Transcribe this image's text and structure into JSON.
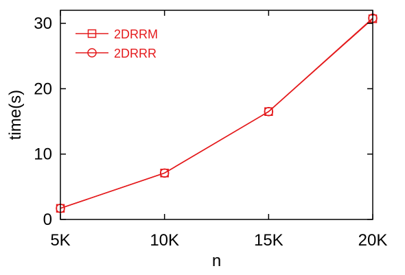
{
  "chart_data": {
    "type": "line",
    "title": "",
    "xlabel": "n",
    "ylabel": "time(s)",
    "x": [
      5000,
      10000,
      15000,
      20000
    ],
    "xlim": [
      5000,
      20000
    ],
    "ylim": [
      0,
      32
    ],
    "x_ticks": [
      {
        "value": 5000,
        "label": "5K"
      },
      {
        "value": 10000,
        "label": "10K"
      },
      {
        "value": 15000,
        "label": "15K"
      },
      {
        "value": 20000,
        "label": "20K"
      }
    ],
    "y_ticks": [
      {
        "value": 0,
        "label": "0"
      },
      {
        "value": 10,
        "label": "10"
      },
      {
        "value": 20,
        "label": "20"
      },
      {
        "value": 30,
        "label": "30"
      }
    ],
    "grid": false,
    "legend_position": "top-left",
    "series": [
      {
        "name": "2DRRM",
        "marker": "square",
        "color": "#e41a1c",
        "values": [
          1.7,
          7.1,
          16.5,
          30.7
        ]
      },
      {
        "name": "2DRRR",
        "marker": "circle",
        "color": "#e41a1c",
        "values": [
          1.7,
          7.1,
          16.5,
          30.8
        ]
      }
    ]
  }
}
